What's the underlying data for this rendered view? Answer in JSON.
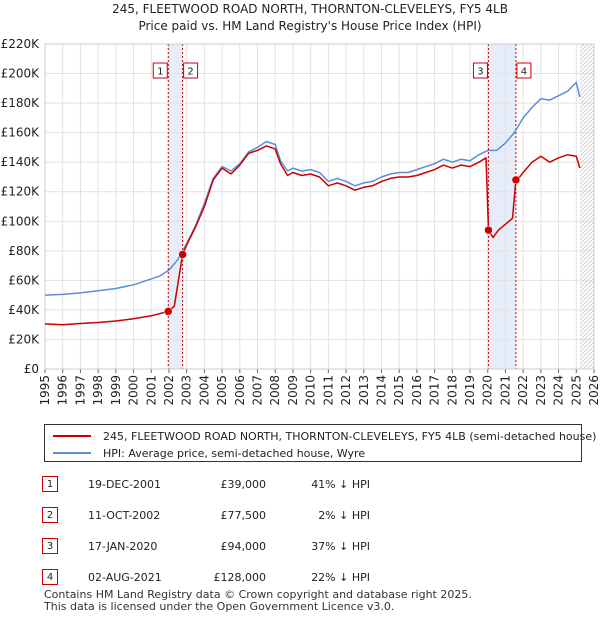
{
  "chart_data": {
    "type": "line",
    "title": "245, FLEETWOOD ROAD NORTH, THORNTON-CLEVELEYS, FY5 4LB",
    "subtitle": "Price paid vs. HM Land Registry's House Price Index (HPI)",
    "xlabel": "",
    "ylabel": "",
    "xlim": [
      1995,
      2026
    ],
    "ylim": [
      0,
      220000
    ],
    "y_ticks": [
      0,
      20000,
      40000,
      60000,
      80000,
      100000,
      120000,
      140000,
      160000,
      180000,
      200000,
      220000
    ],
    "y_tick_labels": [
      "£0",
      "£20K",
      "£40K",
      "£60K",
      "£80K",
      "£100K",
      "£120K",
      "£140K",
      "£160K",
      "£180K",
      "£200K",
      "£220K"
    ],
    "x_ticks": [
      1995,
      1996,
      1997,
      1998,
      1999,
      2000,
      2001,
      2002,
      2003,
      2004,
      2005,
      2006,
      2007,
      2008,
      2009,
      2010,
      2011,
      2012,
      2013,
      2014,
      2015,
      2016,
      2017,
      2018,
      2019,
      2020,
      2021,
      2022,
      2023,
      2024,
      2025,
      2026
    ],
    "grid": true,
    "colors": {
      "property": "#cc0000",
      "hpi": "#5b8ed6",
      "shade": "#dce6f5",
      "marker_line": "#cc0000"
    },
    "series": [
      {
        "name": "245, FLEETWOOD ROAD NORTH, THORNTON-CLEVELEYS, FY5 4LB (semi-detached house)",
        "key": "property",
        "x": [
          1995.0,
          1996.0,
          1997.0,
          1998.0,
          1999.0,
          2000.0,
          2001.0,
          2001.96,
          2002.3,
          2002.77,
          2003.0,
          2003.5,
          2004.0,
          2004.5,
          2005.0,
          2005.5,
          2006.0,
          2006.5,
          2007.0,
          2007.5,
          2008.0,
          2008.3,
          2008.7,
          2009.0,
          2009.5,
          2010.0,
          2010.5,
          2011.0,
          2011.5,
          2012.0,
          2012.5,
          2013.0,
          2013.5,
          2014.0,
          2014.5,
          2015.0,
          2015.5,
          2016.0,
          2016.5,
          2017.0,
          2017.5,
          2018.0,
          2018.5,
          2019.0,
          2019.5,
          2019.9,
          2020.04,
          2020.3,
          2020.6,
          2021.0,
          2021.4,
          2021.59,
          2021.8,
          2022.0,
          2022.5,
          2023.0,
          2023.5,
          2024.0,
          2024.5,
          2025.0,
          2025.2
        ],
        "values": [
          30500,
          30000,
          30800,
          31500,
          32500,
          34000,
          36000,
          39000,
          42500,
          77500,
          84000,
          96000,
          110000,
          128000,
          136000,
          132000,
          138000,
          146000,
          148000,
          151000,
          149000,
          139000,
          131000,
          133000,
          131000,
          132000,
          130000,
          124000,
          126000,
          124000,
          121000,
          123000,
          124000,
          127000,
          129000,
          130000,
          130000,
          131000,
          133000,
          135000,
          138000,
          136000,
          138000,
          137000,
          140000,
          143000,
          94000,
          89000,
          94000,
          98000,
          102000,
          128000,
          130000,
          133000,
          140000,
          144000,
          140000,
          143000,
          145000,
          144000,
          136000
        ]
      },
      {
        "name": "HPI: Average price, semi-detached house, Wyre",
        "key": "hpi",
        "x": [
          1995.0,
          1996.0,
          1997.0,
          1998.0,
          1999.0,
          2000.0,
          2001.0,
          2001.5,
          2002.0,
          2002.5,
          2003.0,
          2003.5,
          2004.0,
          2004.5,
          2005.0,
          2005.5,
          2006.0,
          2006.5,
          2007.0,
          2007.5,
          2008.0,
          2008.3,
          2008.7,
          2009.0,
          2009.5,
          2010.0,
          2010.5,
          2011.0,
          2011.5,
          2012.0,
          2012.5,
          2013.0,
          2013.5,
          2014.0,
          2014.5,
          2015.0,
          2015.5,
          2016.0,
          2016.5,
          2017.0,
          2017.5,
          2018.0,
          2018.5,
          2019.0,
          2019.5,
          2020.0,
          2020.5,
          2021.0,
          2021.5,
          2022.0,
          2022.5,
          2023.0,
          2023.5,
          2024.0,
          2024.5,
          2025.0,
          2025.2
        ],
        "values": [
          50000,
          50500,
          51500,
          53000,
          54500,
          57000,
          61000,
          63000,
          67000,
          74000,
          85000,
          97000,
          112000,
          129000,
          137000,
          134000,
          139000,
          147000,
          150000,
          154000,
          152000,
          141000,
          134000,
          136000,
          134000,
          135000,
          133000,
          127000,
          129000,
          127000,
          124000,
          126000,
          127000,
          130000,
          132000,
          133000,
          133000,
          135000,
          137000,
          139000,
          142000,
          140000,
          142000,
          141000,
          145000,
          148000,
          148000,
          153000,
          160000,
          170000,
          177000,
          183000,
          182000,
          185000,
          188000,
          194000,
          184000
        ]
      }
    ],
    "transactions": [
      {
        "n": "1",
        "date": "19-DEC-2001",
        "x": 2001.96,
        "price": 39000,
        "price_label": "£39,000",
        "hpi_label": "41% ↓ HPI"
      },
      {
        "n": "2",
        "date": "11-OCT-2002",
        "x": 2002.77,
        "price": 77500,
        "price_label": "£77,500",
        "hpi_label": "2% ↓ HPI"
      },
      {
        "n": "3",
        "date": "17-JAN-2020",
        "x": 2020.04,
        "price": 94000,
        "price_label": "£94,000",
        "hpi_label": "37% ↓ HPI"
      },
      {
        "n": "4",
        "date": "02-AUG-2021",
        "x": 2021.59,
        "price": 128000,
        "price_label": "£128,000",
        "hpi_label": "22% ↓ HPI"
      }
    ],
    "shaded_ranges": [
      [
        2001.96,
        2002.77
      ],
      [
        2020.04,
        2021.59
      ]
    ],
    "forecast_from": 2025.2
  },
  "legend": {
    "property_label": "245, FLEETWOOD ROAD NORTH, THORNTON-CLEVELEYS, FY5 4LB (semi-detached house)",
    "hpi_label": "HPI: Average price, semi-detached house, Wyre"
  },
  "footer": {
    "line1": "Contains HM Land Registry data © Crown copyright and database right 2025.",
    "line2": "This data is licensed under the Open Government Licence v3.0."
  }
}
